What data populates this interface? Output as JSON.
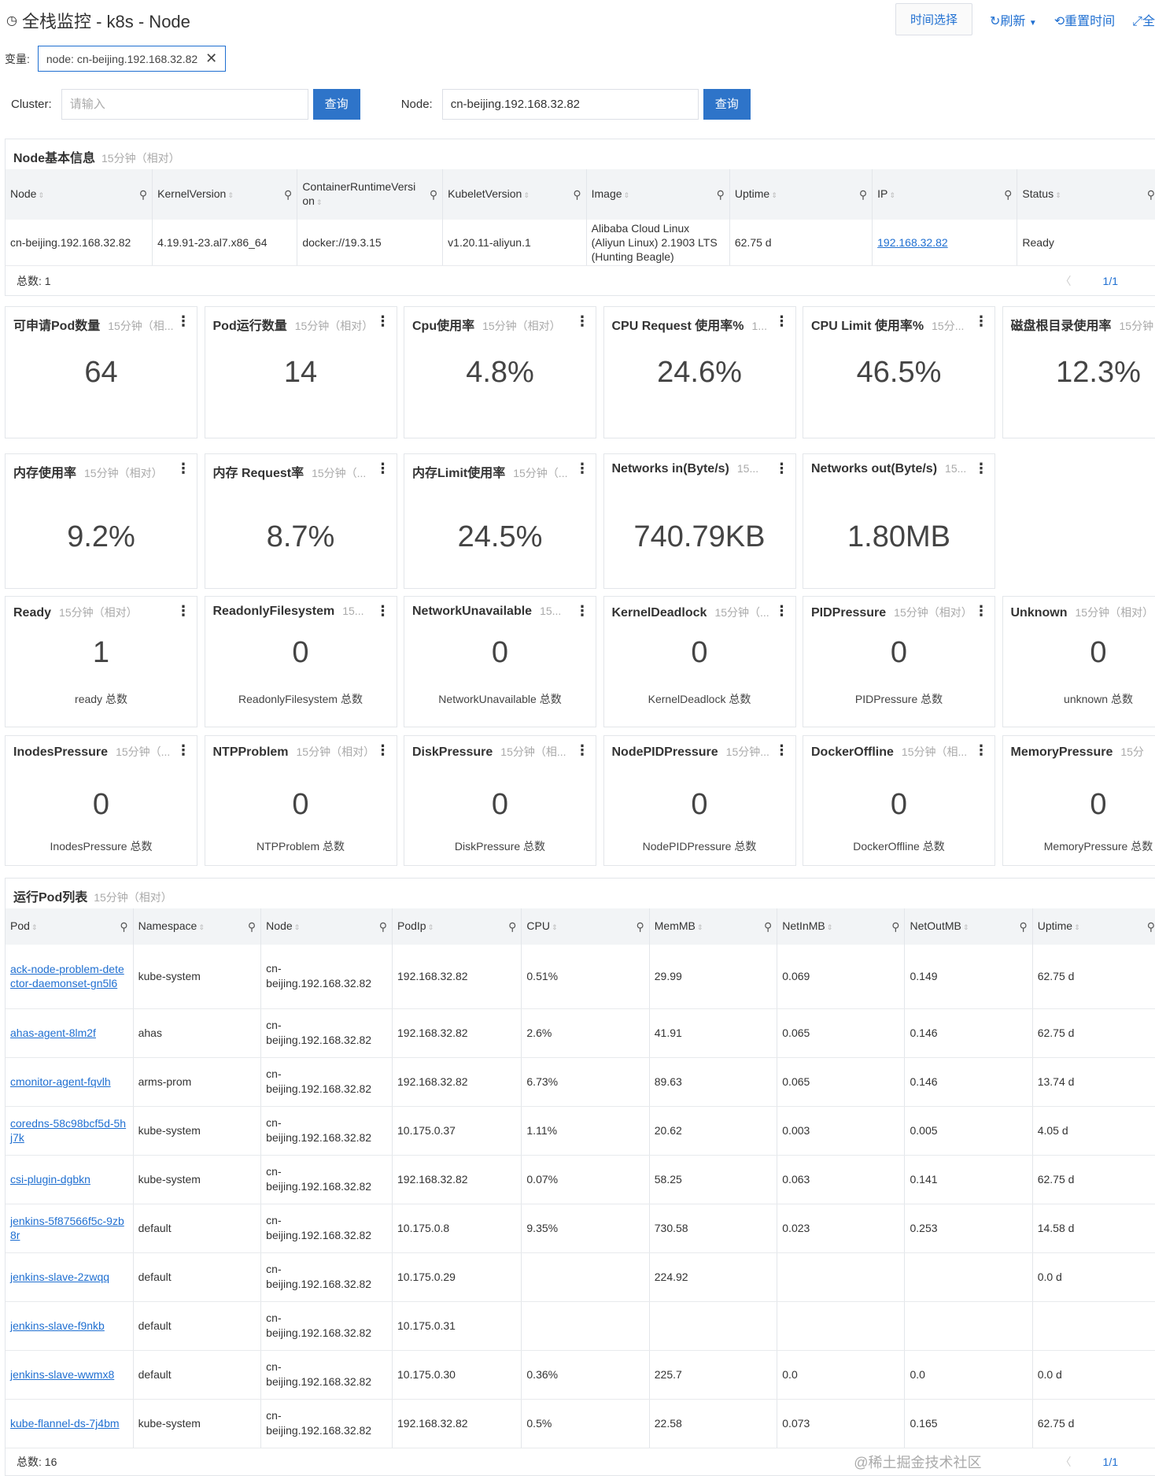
{
  "header": {
    "title": "全栈监控 - k8s - Node",
    "time_select": "时间选择",
    "refresh": "刷新",
    "reset_time": "重置时间",
    "fullscreen": "全"
  },
  "variables": {
    "label": "变量:",
    "tag": "node: cn-beijing.192.168.32.82"
  },
  "query": {
    "cluster_label": "Cluster:",
    "cluster_placeholder": "请输入",
    "node_label": "Node:",
    "node_value": "cn-beijing.192.168.32.82",
    "button": "查询"
  },
  "node_info": {
    "title": "Node基本信息",
    "sub": "15分钟（相对）",
    "columns": [
      "Node",
      "KernelVersion",
      "ContainerRuntimeVersion",
      "KubeletVersion",
      "Image",
      "Uptime",
      "IP",
      "Status"
    ],
    "row": [
      "cn-beijing.192.168.32.82",
      "4.19.91-23.al7.x86_64",
      "docker://19.3.15",
      "v1.20.11-aliyun.1",
      "Alibaba Cloud Linux (Aliyun Linux) 2.1903 LTS (Hunting Beagle)",
      "62.75 d",
      "192.168.32.82",
      "Ready"
    ],
    "total": "总数: 1",
    "page": "1/1"
  },
  "metrics": [
    [
      {
        "t": "可申请Pod数量",
        "s": "15分钟（相...",
        "v": "64"
      },
      {
        "t": "Pod运行数量",
        "s": "15分钟（相对）",
        "v": "14"
      },
      {
        "t": "Cpu使用率",
        "s": "15分钟（相对）",
        "v": "4.8%"
      },
      {
        "t": "CPU Request 使用率%",
        "s": "1...",
        "v": "24.6%"
      },
      {
        "t": "CPU Limit 使用率%",
        "s": "15分...",
        "v": "46.5%"
      },
      {
        "t": "磁盘根目录使用率",
        "s": "15分钟",
        "v": "12.3%"
      }
    ],
    [
      {
        "t": "内存使用率",
        "s": "15分钟（相对）",
        "v": "9.2%"
      },
      {
        "t": "内存 Request率",
        "s": "15分钟（...",
        "v": "8.7%"
      },
      {
        "t": "内存Limit使用率",
        "s": "15分钟（...",
        "v": "24.5%"
      },
      {
        "t": "Networks in(Byte/s)",
        "s": "15...",
        "v": "740.79KB"
      },
      {
        "t": "Networks out(Byte/s)",
        "s": "15...",
        "v": "1.80MB"
      }
    ],
    [
      {
        "t": "Ready",
        "s": "15分钟（相对）",
        "v": "1",
        "l": "ready 总数"
      },
      {
        "t": "ReadonlyFilesystem",
        "s": "15...",
        "v": "0",
        "l": "ReadonlyFilesystem 总数"
      },
      {
        "t": "NetworkUnavailable",
        "s": "15...",
        "v": "0",
        "l": "NetworkUnavailable 总数"
      },
      {
        "t": "KernelDeadlock",
        "s": "15分钟（...",
        "v": "0",
        "l": "KernelDeadlock 总数"
      },
      {
        "t": "PIDPressure",
        "s": "15分钟（相对）",
        "v": "0",
        "l": "PIDPressure 总数"
      },
      {
        "t": "Unknown",
        "s": "15分钟（相对）",
        "v": "0",
        "l": "unknown 总数"
      }
    ],
    [
      {
        "t": "InodesPressure",
        "s": "15分钟（...",
        "v": "0",
        "l": "InodesPressure 总数"
      },
      {
        "t": "NTPProblem",
        "s": "15分钟（相对）",
        "v": "0",
        "l": "NTPProblem 总数"
      },
      {
        "t": "DiskPressure",
        "s": "15分钟（相...",
        "v": "0",
        "l": "DiskPressure 总数"
      },
      {
        "t": "NodePIDPressure",
        "s": "15分钟...",
        "v": "0",
        "l": "NodePIDPressure 总数"
      },
      {
        "t": "DockerOffline",
        "s": "15分钟（相...",
        "v": "0",
        "l": "DockerOffline 总数"
      },
      {
        "t": "MemoryPressure",
        "s": "15分",
        "v": "0",
        "l": "MemoryPressure 总数"
      }
    ]
  ],
  "pods": {
    "title": "运行Pod列表",
    "sub": "15分钟（相对）",
    "columns": [
      "Pod",
      "Namespace",
      "Node",
      "PodIp",
      "CPU",
      "MemMB",
      "NetInMB",
      "NetOutMB",
      "Uptime"
    ],
    "rows": [
      [
        "ack-node-problem-detector-daemonset-gn5l6",
        "kube-system",
        "cn-beijing.192.168.32.82",
        "192.168.32.82",
        "0.51%",
        "29.99",
        "0.069",
        "0.149",
        "62.75 d"
      ],
      [
        "ahas-agent-8lm2f",
        "ahas",
        "cn-beijing.192.168.32.82",
        "192.168.32.82",
        "2.6%",
        "41.91",
        "0.065",
        "0.146",
        "62.75 d"
      ],
      [
        "cmonitor-agent-fqvlh",
        "arms-prom",
        "cn-beijing.192.168.32.82",
        "192.168.32.82",
        "6.73%",
        "89.63",
        "0.065",
        "0.146",
        "13.74 d"
      ],
      [
        "coredns-58c98bcf5d-5hj7k",
        "kube-system",
        "cn-beijing.192.168.32.82",
        "10.175.0.37",
        "1.11%",
        "20.62",
        "0.003",
        "0.005",
        "4.05 d"
      ],
      [
        "csi-plugin-dgbkn",
        "kube-system",
        "cn-beijing.192.168.32.82",
        "192.168.32.82",
        "0.07%",
        "58.25",
        "0.063",
        "0.141",
        "62.75 d"
      ],
      [
        "jenkins-5f87566f5c-9zb8r",
        "default",
        "cn-beijing.192.168.32.82",
        "10.175.0.8",
        "9.35%",
        "730.58",
        "0.023",
        "0.253",
        "14.58 d"
      ],
      [
        "jenkins-slave-2zwqq",
        "default",
        "cn-beijing.192.168.32.82",
        "10.175.0.29",
        "",
        "224.92",
        "",
        "",
        "0.0 d"
      ],
      [
        "jenkins-slave-f9nkb",
        "default",
        "cn-beijing.192.168.32.82",
        "10.175.0.31",
        "",
        "",
        "",
        "",
        ""
      ],
      [
        "jenkins-slave-wwmx8",
        "default",
        "cn-beijing.192.168.32.82",
        "10.175.0.30",
        "0.36%",
        "225.7",
        "0.0",
        "0.0",
        "0.0 d"
      ],
      [
        "kube-flannel-ds-7j4bm",
        "kube-system",
        "cn-beijing.192.168.32.82",
        "192.168.32.82",
        "0.5%",
        "22.58",
        "0.073",
        "0.165",
        "62.75 d"
      ]
    ],
    "total": "总数: 16",
    "page": "1/1"
  },
  "watermark": "@稀土掘金技术社区"
}
